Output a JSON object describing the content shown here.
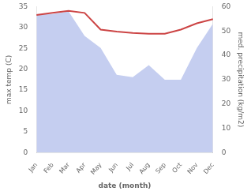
{
  "chart_data": {
    "type": "line",
    "categories": [
      "Jan",
      "Feb",
      "Mar",
      "Apr",
      "May",
      "Jun",
      "Jul",
      "Aug",
      "Sep",
      "Oct",
      "Nov",
      "Dec"
    ],
    "xlabel": "date (month)",
    "ylabel": "max temp (C)",
    "y2label": "med. precipitation (kg/m2)",
    "series": [
      {
        "type": "area",
        "color": "#c5cef0",
        "axis": "y2",
        "values": [
          57.0,
          57.0,
          58.0,
          48.0,
          43.0,
          32.0,
          31.0,
          36.0,
          30.0,
          30.0,
          43.0,
          53.0
        ]
      },
      {
        "type": "line",
        "color": "#cc4444",
        "values": [
          33.0,
          33.5,
          34.0,
          33.5,
          29.5,
          29.0,
          28.7,
          28.5,
          28.5,
          29.5,
          31.0,
          32.0
        ]
      }
    ],
    "ylim": [
      0,
      35
    ],
    "yticks": [
      0,
      5,
      10,
      15,
      20,
      25,
      30,
      35
    ],
    "y2lim": [
      0,
      60
    ],
    "y2ticks": [
      0,
      10,
      20,
      30,
      40,
      50,
      60
    ],
    "grid": false
  }
}
